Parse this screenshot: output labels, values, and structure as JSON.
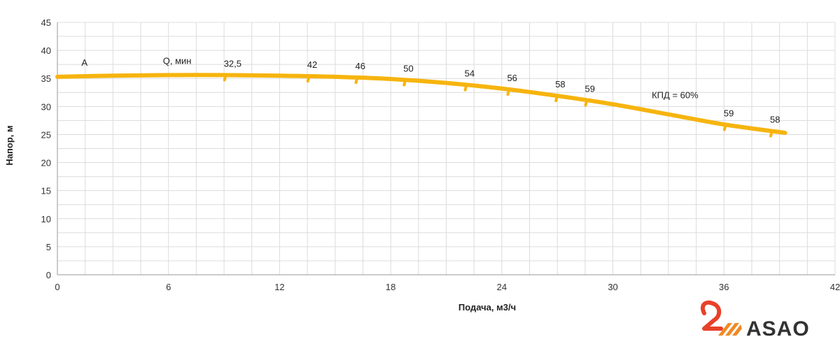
{
  "chart_data": {
    "type": "line",
    "xlabel": "Подача, м3/ч",
    "ylabel": "Напор, м",
    "xlim": [
      0,
      42
    ],
    "ylim": [
      0,
      45
    ],
    "x_ticks": [
      "0",
      "6",
      "12",
      "18",
      "24",
      "30",
      "36",
      "42"
    ],
    "y_ticks": [
      "0",
      "5",
      "10",
      "15",
      "20",
      "25",
      "30",
      "35",
      "40",
      "45"
    ],
    "grid": true,
    "series": [
      {
        "color": "#f6b40e",
        "x": [
          0,
          3,
          6,
          9,
          12,
          15,
          18,
          21,
          24,
          27,
          30,
          33,
          36,
          39.3
        ],
        "y": [
          35.3,
          35.5,
          35.6,
          35.6,
          35.5,
          35.3,
          34.9,
          34.2,
          33.2,
          31.9,
          30.4,
          28.6,
          26.8,
          25.3
        ]
      }
    ],
    "efficiency_marks": [
      {
        "x": 9.1,
        "label": "32,5"
      },
      {
        "x": 13.6,
        "label": "42"
      },
      {
        "x": 16.2,
        "label": "46"
      },
      {
        "x": 18.8,
        "label": "50"
      },
      {
        "x": 22.1,
        "label": "54"
      },
      {
        "x": 24.4,
        "label": "56"
      },
      {
        "x": 27.0,
        "label": "58"
      },
      {
        "x": 28.6,
        "label": "59"
      },
      {
        "x": 36.1,
        "label": "59"
      },
      {
        "x": 38.6,
        "label": "58"
      }
    ],
    "annotations": [
      {
        "text": "А",
        "x": 1.3,
        "y": 37.3
      },
      {
        "text": "Q, мин",
        "x": 5.7,
        "y": 37.6
      },
      {
        "text": "КПД = 60%",
        "x": 32.1,
        "y": 31.5
      }
    ]
  },
  "logo": {
    "text": "ASAO",
    "colors": {
      "mark": "#e8412a",
      "text": "#333333"
    }
  }
}
